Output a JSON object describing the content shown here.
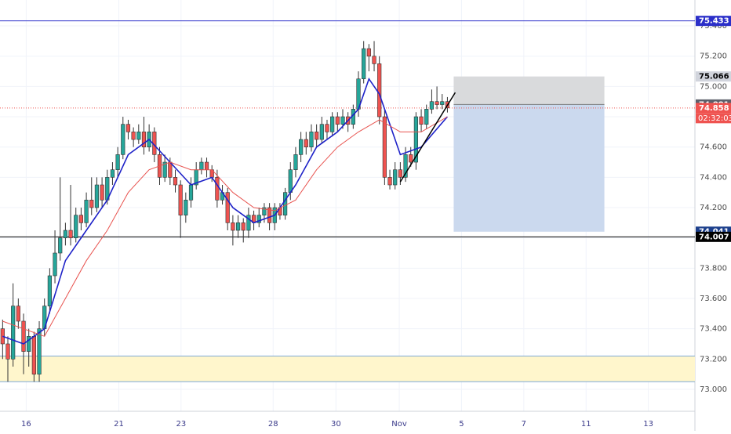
{
  "chart_data": {
    "type": "candlestick",
    "xlim": [
      -0.5,
      132.3
    ],
    "ylim": [
      72.855,
      75.571
    ],
    "grid": true,
    "xticks": [
      {
        "value": 4.5,
        "label": "16"
      },
      {
        "value": 22.2,
        "label": "21"
      },
      {
        "value": 34.1,
        "label": "23"
      },
      {
        "value": 51.7,
        "label": "28"
      },
      {
        "value": 63.7,
        "label": "30"
      },
      {
        "value": 75.8,
        "label": "Nov"
      },
      {
        "value": 87.7,
        "label": "5"
      },
      {
        "value": 99.6,
        "label": "7"
      },
      {
        "value": 111.5,
        "label": "11"
      },
      {
        "value": 123.4,
        "label": "13"
      }
    ],
    "yticks": [
      {
        "value": 73.0,
        "label": "73.000"
      },
      {
        "value": 73.2,
        "label": "73.200"
      },
      {
        "value": 73.4,
        "label": "73.400"
      },
      {
        "value": 73.6,
        "label": "73.600"
      },
      {
        "value": 73.8,
        "label": "73.800"
      },
      {
        "value": 74.0,
        "label": "74.000"
      },
      {
        "value": 74.2,
        "label": "74.200"
      },
      {
        "value": 74.4,
        "label": "74.400"
      },
      {
        "value": 74.6,
        "label": "74.600"
      },
      {
        "value": 74.8,
        "label": "74.800"
      },
      {
        "value": 75.0,
        "label": "75.000"
      },
      {
        "value": 75.2,
        "label": "75.200"
      },
      {
        "value": 75.4,
        "label": "75.400"
      }
    ],
    "up_color": "#26a69a",
    "down_color": "#ef5350",
    "candles": {
      "open": [
        73.4,
        73.3,
        73.2,
        73.55,
        73.45,
        73.25,
        73.35,
        73.1,
        73.4,
        73.55,
        73.75,
        73.9,
        74.0,
        74.05,
        74.0,
        74.15,
        74.1,
        74.25,
        74.2,
        74.35,
        74.25,
        74.4,
        74.45,
        74.55,
        74.75,
        74.7,
        74.65,
        74.7,
        74.6,
        74.7,
        74.55,
        74.4,
        74.5,
        74.4,
        74.35,
        74.15,
        74.25,
        74.35,
        74.45,
        74.5,
        74.45,
        74.4,
        74.25,
        74.3,
        74.1,
        74.05,
        74.1,
        74.05,
        74.15,
        74.1,
        74.15,
        74.2,
        74.1,
        74.2,
        74.15,
        74.3,
        74.45,
        74.55,
        74.65,
        74.6,
        74.7,
        74.65,
        74.75,
        74.7,
        74.8,
        74.75,
        74.8,
        74.75,
        74.85,
        75.05,
        75.25,
        75.2,
        75.15,
        74.8,
        74.4,
        74.35,
        74.45,
        74.4,
        74.55,
        74.5,
        74.8,
        74.75,
        74.85,
        74.9,
        74.88,
        74.9
      ],
      "high": [
        73.46,
        73.35,
        73.7,
        73.6,
        73.5,
        73.4,
        73.38,
        73.45,
        73.6,
        73.8,
        74.05,
        74.4,
        74.1,
        74.35,
        74.2,
        74.2,
        74.3,
        74.4,
        74.4,
        74.4,
        74.45,
        74.5,
        74.6,
        74.8,
        74.78,
        74.73,
        74.75,
        74.8,
        74.75,
        74.73,
        74.6,
        74.55,
        74.53,
        74.45,
        74.38,
        74.3,
        74.4,
        74.5,
        74.53,
        74.53,
        74.48,
        74.45,
        74.35,
        74.33,
        74.15,
        74.15,
        74.13,
        74.2,
        74.18,
        74.2,
        74.23,
        74.23,
        74.23,
        74.23,
        74.33,
        74.5,
        74.6,
        74.7,
        74.7,
        74.75,
        74.75,
        74.8,
        74.78,
        74.83,
        74.83,
        74.85,
        74.83,
        74.88,
        75.1,
        75.3,
        75.28,
        75.3,
        75.2,
        74.85,
        74.45,
        74.5,
        74.5,
        74.6,
        74.6,
        74.83,
        74.85,
        74.88,
        74.98,
        75.0,
        74.95,
        74.93
      ],
      "low": [
        73.2,
        73.05,
        73.15,
        73.4,
        73.1,
        73.15,
        73.05,
        73.05,
        73.35,
        73.5,
        73.7,
        73.85,
        73.95,
        73.95,
        73.97,
        74.05,
        74.07,
        74.15,
        74.17,
        74.2,
        74.22,
        74.35,
        74.4,
        74.52,
        74.65,
        74.6,
        74.62,
        74.55,
        74.57,
        74.5,
        74.35,
        74.37,
        74.35,
        74.3,
        74.0,
        74.1,
        74.2,
        74.32,
        74.42,
        74.4,
        74.37,
        74.2,
        74.22,
        74.05,
        73.95,
        74.0,
        73.97,
        74.0,
        74.05,
        74.07,
        74.1,
        74.05,
        74.05,
        74.12,
        74.12,
        74.25,
        74.4,
        74.5,
        74.55,
        74.57,
        74.6,
        74.62,
        74.65,
        74.67,
        74.7,
        74.72,
        74.7,
        74.72,
        74.8,
        75.02,
        75.1,
        75.1,
        74.75,
        74.35,
        74.32,
        74.32,
        74.35,
        74.37,
        74.47,
        74.45,
        74.7,
        74.72,
        74.82,
        74.85,
        74.85,
        74.828
      ],
      "close": [
        73.3,
        73.2,
        73.55,
        73.45,
        73.25,
        73.35,
        73.1,
        73.4,
        73.55,
        73.75,
        73.9,
        74.0,
        74.05,
        74.0,
        74.15,
        74.1,
        74.25,
        74.2,
        74.35,
        74.25,
        74.4,
        74.45,
        74.55,
        74.75,
        74.7,
        74.65,
        74.7,
        74.6,
        74.7,
        74.55,
        74.4,
        74.5,
        74.4,
        74.35,
        74.15,
        74.25,
        74.35,
        74.45,
        74.5,
        74.45,
        74.4,
        74.25,
        74.3,
        74.1,
        74.05,
        74.1,
        74.05,
        74.15,
        74.1,
        74.15,
        74.2,
        74.1,
        74.2,
        74.15,
        74.3,
        74.45,
        74.55,
        74.65,
        74.6,
        74.7,
        74.65,
        74.75,
        74.7,
        74.8,
        74.75,
        74.8,
        74.75,
        74.85,
        75.05,
        75.25,
        75.2,
        75.15,
        74.8,
        74.4,
        74.35,
        74.45,
        74.4,
        74.55,
        74.5,
        74.8,
        74.75,
        74.85,
        74.9,
        74.88,
        74.9,
        74.858
      ]
    },
    "moving_averages": [
      {
        "color": "#1e22c8",
        "x": [
          0,
          4,
          8,
          12,
          16,
          20,
          24,
          28,
          32,
          36,
          40,
          44,
          48,
          52,
          56,
          60,
          64,
          68,
          70,
          72,
          76,
          80,
          85
        ],
        "values": [
          73.35,
          73.3,
          73.4,
          73.85,
          74.05,
          74.25,
          74.55,
          74.65,
          74.5,
          74.35,
          74.4,
          74.2,
          74.1,
          74.15,
          74.35,
          74.6,
          74.7,
          74.85,
          75.05,
          74.95,
          74.55,
          74.6,
          74.8
        ]
      },
      {
        "color": "#e8534f",
        "x": [
          0,
          4,
          8,
          12,
          16,
          20,
          24,
          28,
          32,
          36,
          40,
          44,
          48,
          52,
          56,
          60,
          64,
          68,
          72,
          76,
          80,
          85
        ],
        "values": [
          73.45,
          73.4,
          73.35,
          73.6,
          73.85,
          74.05,
          74.3,
          74.45,
          74.5,
          74.45,
          74.45,
          74.3,
          74.2,
          74.18,
          74.25,
          74.45,
          74.6,
          74.7,
          74.78,
          74.7,
          74.7,
          74.8
        ]
      }
    ],
    "levels": [
      {
        "value": 75.433,
        "color": "#2b2fc9"
      },
      {
        "value": 74.007,
        "color": "#000000"
      }
    ],
    "zone": {
      "low": 73.05,
      "high": 73.22,
      "color": "#fff6cc"
    },
    "position": {
      "x": [
        86.2,
        115.0
      ],
      "target": 75.066,
      "entry": 74.881,
      "stop": 74.041
    },
    "trend_line": {
      "x": [
        76,
        86.5
      ],
      "values": [
        74.37,
        74.96
      ]
    },
    "last_price": 74.858,
    "countdown": "02:32:03"
  }
}
